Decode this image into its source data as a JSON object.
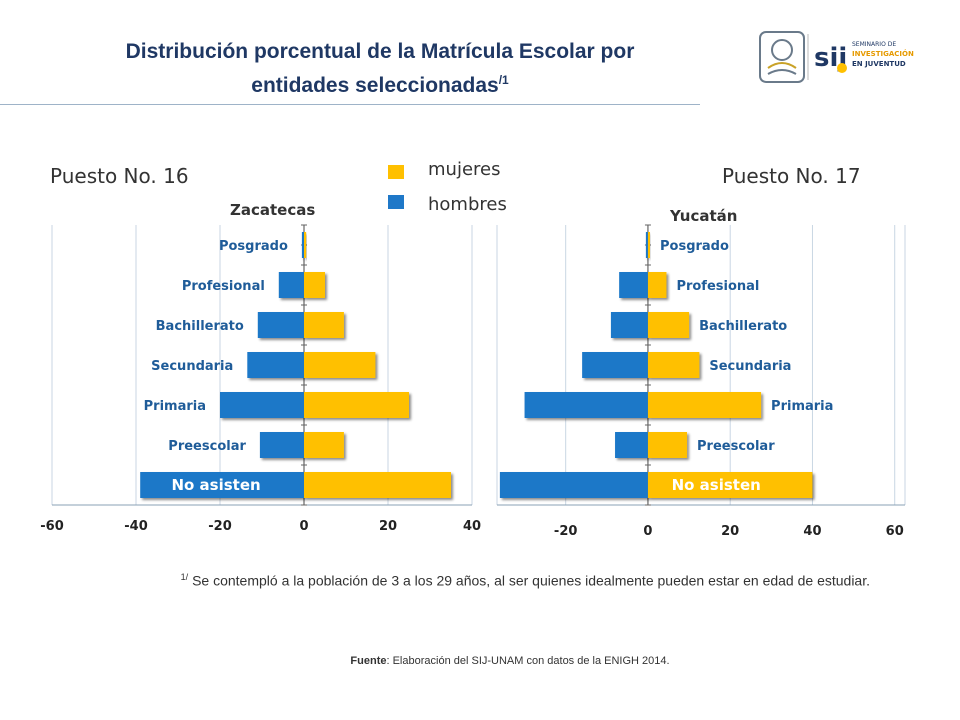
{
  "header": {
    "title_line1": "Distribución porcentual de la Matrícula Escolar por",
    "title_line2": "entidades seleccionadas",
    "title_sup": "/1",
    "logo_text": [
      "SEMINARIO DE",
      "INVESTIGACIÓN",
      "EN JUVENTUD"
    ],
    "logo_mark": "sij"
  },
  "legend": {
    "women_label": "mujeres",
    "men_label": "hombres"
  },
  "colors": {
    "women": "#ffc000",
    "men": "#1f78c8",
    "label": "#1f5c99",
    "grid": "#c9d6e3"
  },
  "chart_data": [
    {
      "type": "bar",
      "orientation": "horizontal",
      "title": "Zacatecas",
      "rank_label": "Puesto No. 16",
      "categories": [
        "Posgrado",
        "Profesional",
        "Bachillerato",
        "Secundaria",
        "Primaria",
        "Preescolar",
        "No asisten"
      ],
      "series": [
        {
          "name": "hombres",
          "values": [
            -0.5,
            -6,
            -11,
            -13.5,
            -20,
            -10.5,
            -39
          ]
        },
        {
          "name": "mujeres",
          "values": [
            0.5,
            5,
            9.5,
            17,
            25,
            9.5,
            35
          ]
        }
      ],
      "xlim": [
        -60,
        40
      ],
      "xticks": [
        -60,
        -40,
        -20,
        0,
        20,
        40
      ]
    },
    {
      "type": "bar",
      "orientation": "horizontal",
      "title": "Yucatán",
      "rank_label": "Puesto No. 17",
      "categories": [
        "Posgrado",
        "Profesional",
        "Bachillerato",
        "Secundaria",
        "Primaria",
        "Preescolar",
        "No asisten"
      ],
      "series": [
        {
          "name": "hombres",
          "values": [
            -0.5,
            -7,
            -9,
            -16,
            -30,
            -8,
            -36
          ]
        },
        {
          "name": "mujeres",
          "values": [
            0.5,
            4.5,
            10,
            12.5,
            27.5,
            9.5,
            40
          ]
        }
      ],
      "xlim": [
        -36.7,
        62.5
      ],
      "xticks": [
        -20,
        0,
        20,
        40,
        60
      ]
    }
  ],
  "footnote": {
    "sup": "1/",
    "text": "Se contempló a la población de 3 a los 29 años, al ser quienes idealmente pueden estar en edad de estudiar."
  },
  "source": {
    "label": "Fuente",
    "text": ": Elaboración del SIJ-UNAM con datos de la ENIGH 2014."
  }
}
